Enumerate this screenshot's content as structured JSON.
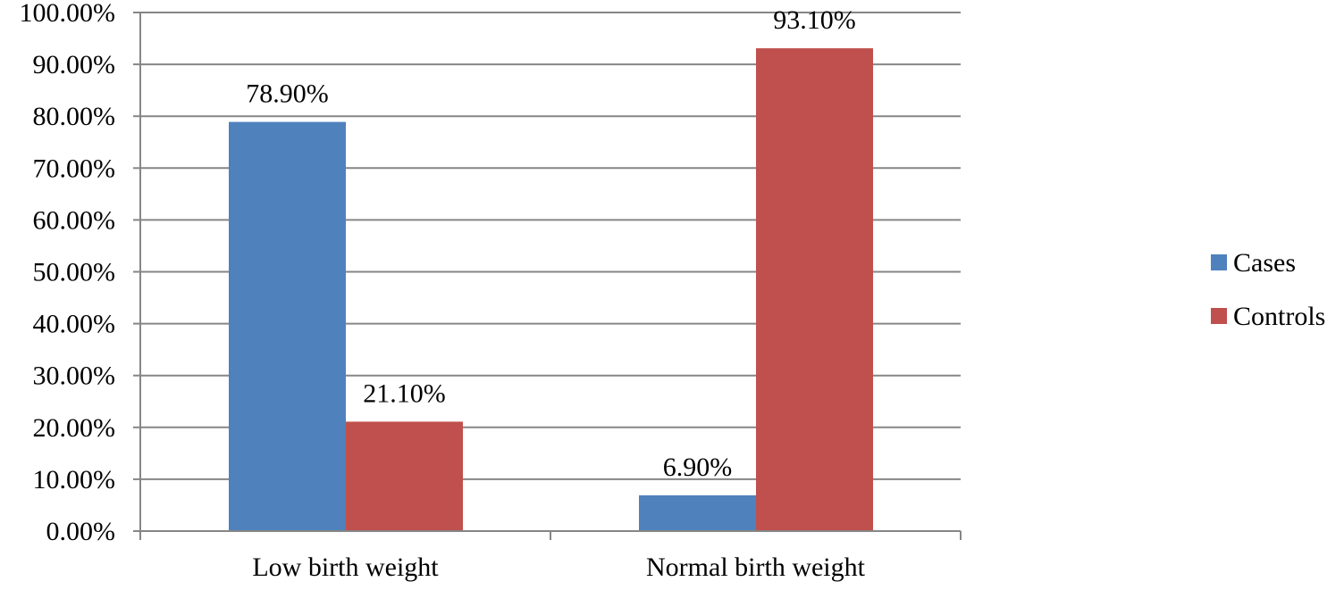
{
  "chart_data": {
    "type": "bar",
    "title": "",
    "xlabel": "",
    "ylabel": "",
    "categories": [
      "Low birth weight",
      "Normal birth weight"
    ],
    "series": [
      {
        "name": "Cases",
        "values": [
          78.9,
          6.9
        ],
        "labels": [
          "78.90%",
          "6.90%"
        ],
        "color": "#4f81bd"
      },
      {
        "name": "Controls",
        "values": [
          21.1,
          93.1
        ],
        "labels": [
          "21.10%",
          "93.10%"
        ],
        "color": "#c0504d"
      }
    ],
    "ylim": [
      0,
      100
    ],
    "yticks": [
      0,
      10,
      20,
      30,
      40,
      50,
      60,
      70,
      80,
      90,
      100
    ],
    "ytick_labels": [
      "0.00%",
      "10.00%",
      "20.00%",
      "30.00%",
      "40.00%",
      "50.00%",
      "60.00%",
      "70.00%",
      "80.00%",
      "90.00%",
      "100.00%"
    ],
    "grid": true,
    "legend_position": "right"
  }
}
